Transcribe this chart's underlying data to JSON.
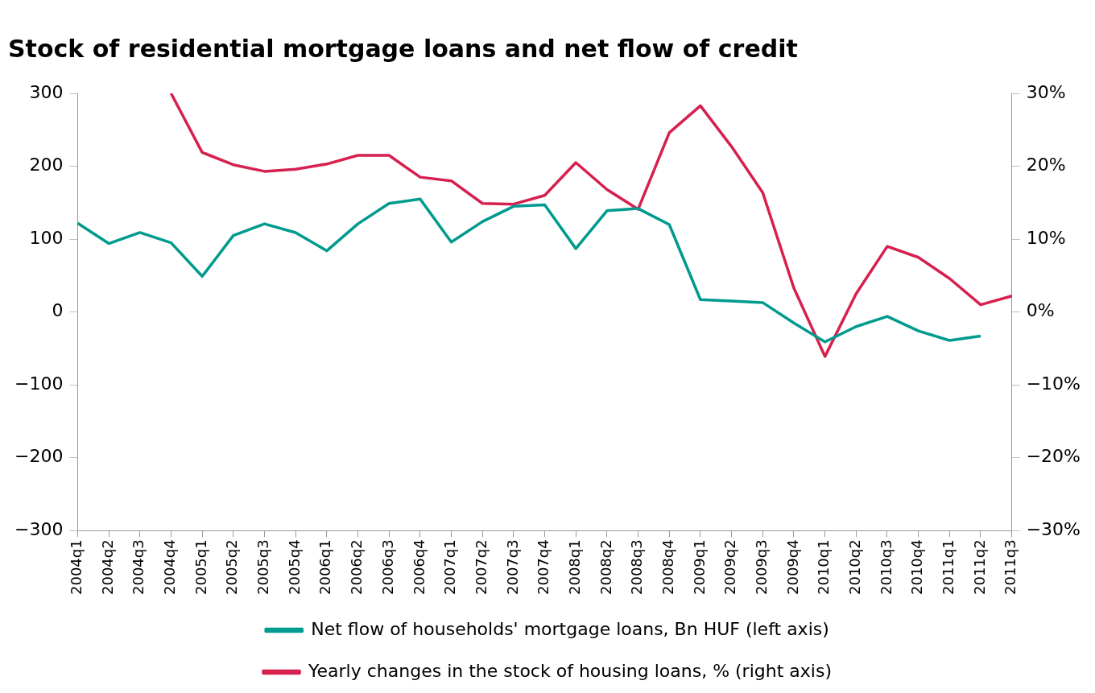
{
  "chart_data": {
    "type": "line",
    "title": "Stock of residential mortgage loans and net flow of credit",
    "categories": [
      "2004q1",
      "2004q2",
      "2004q3",
      "2004q4",
      "2005q1",
      "2005q2",
      "2005q3",
      "2005q4",
      "2006q1",
      "2006q2",
      "2006q3",
      "2006q4",
      "2007q1",
      "2007q2",
      "2007q3",
      "2007q4",
      "2008q1",
      "2008q2",
      "2008q3",
      "2008q4",
      "2009q1",
      "2009q2",
      "2009q3",
      "2009q4",
      "2010q1",
      "2010q2",
      "2010q3",
      "2010q4",
      "2011q1",
      "2011q2",
      "2011q3"
    ],
    "series": [
      {
        "name": "Net flow of households' mortgage loans, Bn HUF (left axis)",
        "color": "#009a8e",
        "values": [
          122,
          94,
          109,
          95,
          49,
          105,
          121,
          109,
          84,
          121,
          149,
          155,
          96,
          124,
          145,
          147,
          87,
          139,
          142,
          120,
          17,
          15,
          13,
          -15,
          -41,
          -20,
          -6,
          -26,
          -39,
          -33,
          null
        ]
      },
      {
        "name": "Yearly changes in the stock of housing loans, % (right axis)",
        "color": "#d6204e",
        "axis": "y2",
        "values": [
          null,
          null,
          null,
          30,
          21.9,
          20.2,
          19.3,
          19.6,
          20.3,
          21.5,
          21.5,
          18.5,
          18.0,
          14.9,
          14.8,
          16.0,
          20.5,
          16.8,
          14.1,
          24.6,
          28.3,
          22.7,
          16.4,
          3.3,
          -6.1,
          2.5,
          9.0,
          7.5,
          4.6,
          1.0,
          2.2
        ]
      }
    ],
    "ylim": [
      -300,
      300
    ],
    "yticks": [
      {
        "value": -300,
        "label": "−300"
      },
      {
        "value": -200,
        "label": "−200"
      },
      {
        "value": -100,
        "label": "−100"
      },
      0,
      100,
      200,
      300
    ],
    "y2lim": [
      -30,
      30
    ],
    "y2ticks": [
      {
        "value": -30,
        "label": "−30%"
      },
      {
        "value": -20,
        "label": "−20%"
      },
      {
        "value": -10,
        "label": "−10%"
      },
      {
        "value": 0,
        "label": "0%"
      },
      {
        "value": 10,
        "label": "10%"
      },
      {
        "value": 20,
        "label": "20%"
      },
      {
        "value": 30,
        "label": "30%"
      }
    ],
    "grid": false,
    "legend": "bottom",
    "marker": "none",
    "line_style": "solid"
  }
}
